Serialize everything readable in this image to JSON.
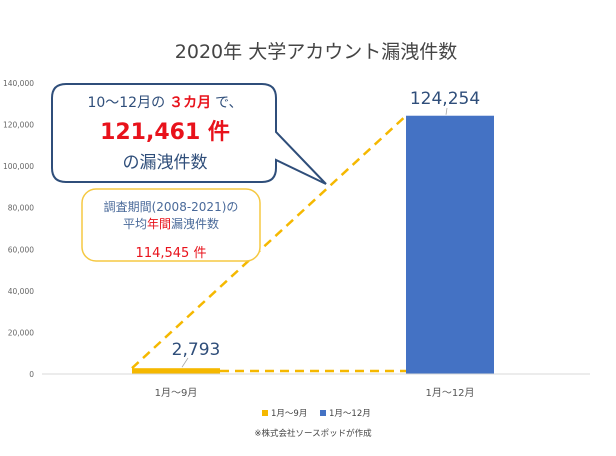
{
  "chart_data": {
    "type": "bar",
    "title": "2020年 大学アカウント漏洩件数",
    "categories": [
      "1月〜9月",
      "1月〜12月"
    ],
    "series": [
      {
        "name": "1月〜9月",
        "category": "1月〜9月",
        "value": 2793,
        "color": "#f5b800"
      },
      {
        "name": "1月〜12月",
        "category": "1月〜12月",
        "value": 124254,
        "color": "#4472c4"
      }
    ],
    "data_labels": [
      "2,793",
      "124,254"
    ],
    "ylim": [
      0,
      140000
    ],
    "yticks": [
      0,
      20000,
      40000,
      60000,
      80000,
      100000,
      120000,
      140000
    ],
    "ytick_labels": [
      "0",
      "20,000",
      "40,000",
      "60,000",
      "80,000",
      "100,000",
      "120,000",
      "140,000"
    ],
    "grid": false,
    "legend_position": "bottom",
    "source_note": "※株式会社ソースポッドが作成",
    "annotations": {
      "callout_line1_pre": "10〜12月の",
      "callout_line1_highlight": "３カ月",
      "callout_line1_post": "で、",
      "callout_line2": "121,461 件",
      "callout_line3": "の漏洩件数",
      "avg_line1": "調査期間(2008-2021)の",
      "avg_line2_pre": "平均",
      "avg_line2_highlight": "年間",
      "avg_line2_post": "漏洩件数",
      "avg_value": "114,545 件"
    },
    "colors": {
      "callout_border": "#2f4e7a",
      "avg_border": "#f5c842",
      "dash": "#f5b800",
      "red": "#e8121b"
    }
  }
}
